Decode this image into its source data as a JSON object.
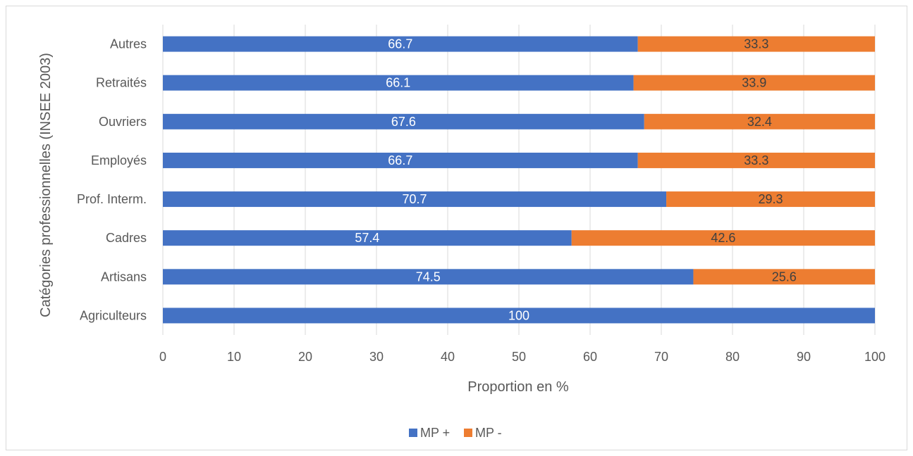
{
  "chart_data": {
    "type": "bar",
    "orientation": "horizontal",
    "stacked": true,
    "categories": [
      "Agriculteurs",
      "Artisans",
      "Cadres",
      "Prof. Interm.",
      "Employés",
      "Ouvriers",
      "Retraités",
      "Autres"
    ],
    "series": [
      {
        "name": "MP +",
        "color": "#4472c4",
        "label_color": "#ffffff",
        "values": [
          100,
          74.5,
          57.4,
          70.7,
          66.7,
          67.6,
          66.1,
          66.7
        ]
      },
      {
        "name": "MP -",
        "color": "#ed7d31",
        "label_color": "#404040",
        "values": [
          0,
          25.6,
          42.6,
          29.3,
          33.3,
          32.4,
          33.9,
          33.3
        ]
      }
    ],
    "data_labels": [
      [
        "100",
        "74.5",
        "57.4",
        "70.7",
        "66.7",
        "67.6",
        "66.1",
        "66.7"
      ],
      [
        "",
        "25.6",
        "42.6",
        "29.3",
        "33.3",
        "32.4",
        "33.9",
        "33.3"
      ]
    ],
    "title": "",
    "xlabel": "Proportion en %",
    "ylabel": "Catégories professionnelles (INSEE 2003)",
    "xlim": [
      0,
      100
    ],
    "xticks": [
      "0",
      "10",
      "20",
      "30",
      "40",
      "50",
      "60",
      "70",
      "80",
      "90",
      "100"
    ],
    "grid": "vertical",
    "legend": "bottom",
    "gridline_color": "#d9d9d9"
  }
}
